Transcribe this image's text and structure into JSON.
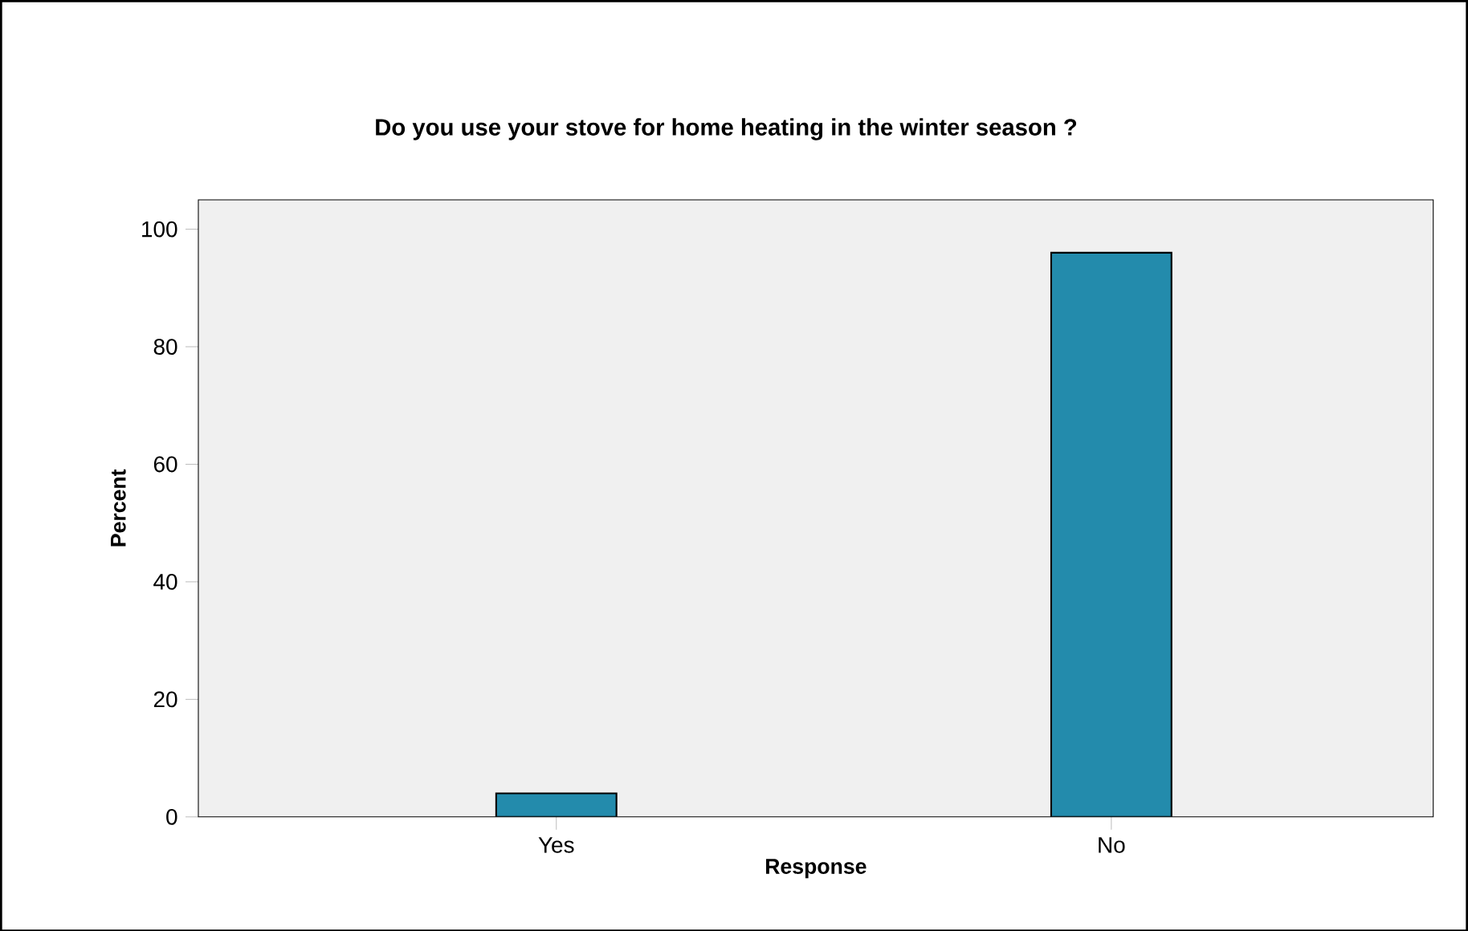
{
  "chart_data": {
    "type": "bar",
    "title": "Do you use your stove for home heating in the winter season ?",
    "xlabel": "Response",
    "ylabel": "Percent",
    "categories": [
      "Yes",
      "No"
    ],
    "values": [
      4,
      96
    ],
    "color": "#238bac",
    "ylim": [
      0,
      105
    ],
    "yticks": [
      0,
      20,
      40,
      60,
      80,
      100
    ],
    "grid": false
  }
}
